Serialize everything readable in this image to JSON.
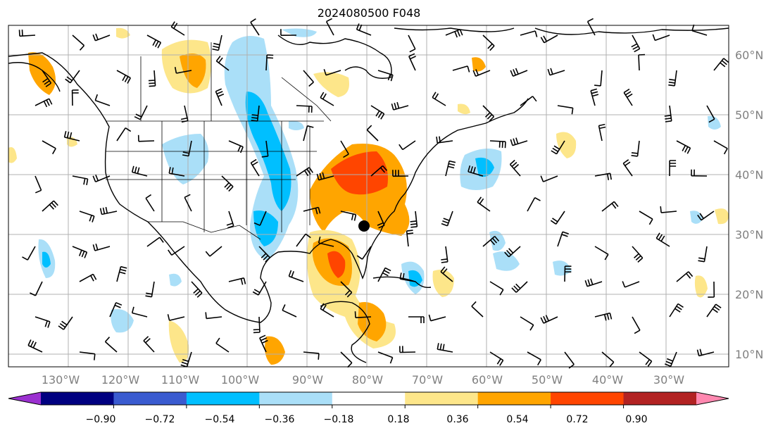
{
  "title": "2024080500 F048",
  "map": {
    "lon_labels": [
      "130°W",
      "120°W",
      "110°W",
      "100°W",
      "90°W",
      "80°W",
      "70°W",
      "60°W",
      "50°W",
      "40°W",
      "30°W"
    ],
    "lat_labels": [
      "60°N",
      "50°N",
      "40°N",
      "30°N",
      "20°N",
      "10°N"
    ],
    "label_color": "#808080",
    "grid_color": "#b0b0b0"
  },
  "colorbar": {
    "ticks": [
      "−0.90",
      "−0.72",
      "−0.54",
      "−0.36",
      "−0.18",
      "0.18",
      "0.36",
      "0.54",
      "0.72",
      "0.90"
    ],
    "colors": [
      "#9b30d0",
      "#000080",
      "#3a5bd0",
      "#00bfff",
      "#aadff8",
      "#ffffff",
      "#fde68a",
      "#ffa500",
      "#ff4500",
      "#b22222",
      "#ff88b0"
    ]
  }
}
